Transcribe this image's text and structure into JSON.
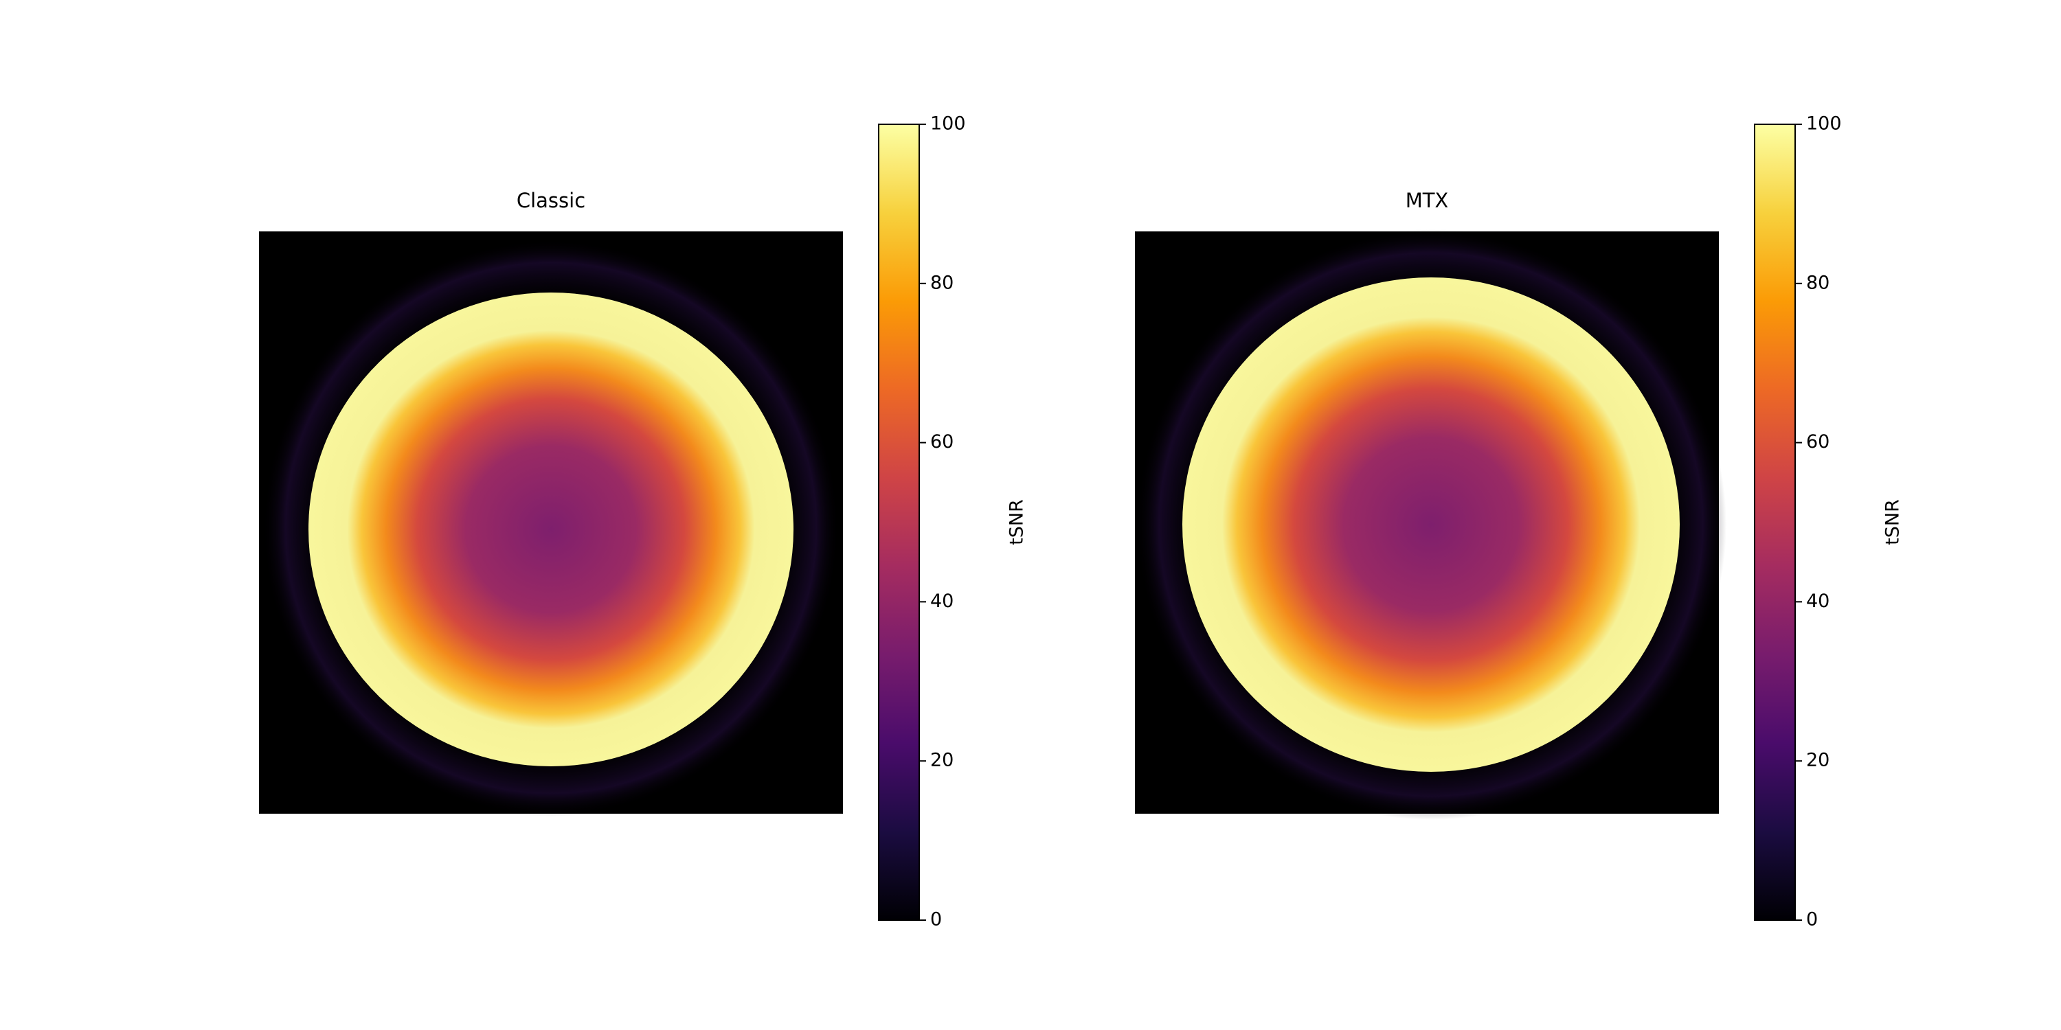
{
  "chart_data": [
    {
      "type": "heatmap",
      "title": "Classic",
      "colorbar_label": "tSNR",
      "clim": [
        0,
        100
      ],
      "cticks": [
        0,
        20,
        40,
        60,
        80,
        100
      ],
      "colormap": "inferno"
    },
    {
      "type": "heatmap",
      "title": "MTX",
      "colorbar_label": "tSNR",
      "clim": [
        0,
        100
      ],
      "cticks": [
        0,
        20,
        40,
        60,
        80,
        100
      ],
      "colormap": "inferno"
    }
  ]
}
